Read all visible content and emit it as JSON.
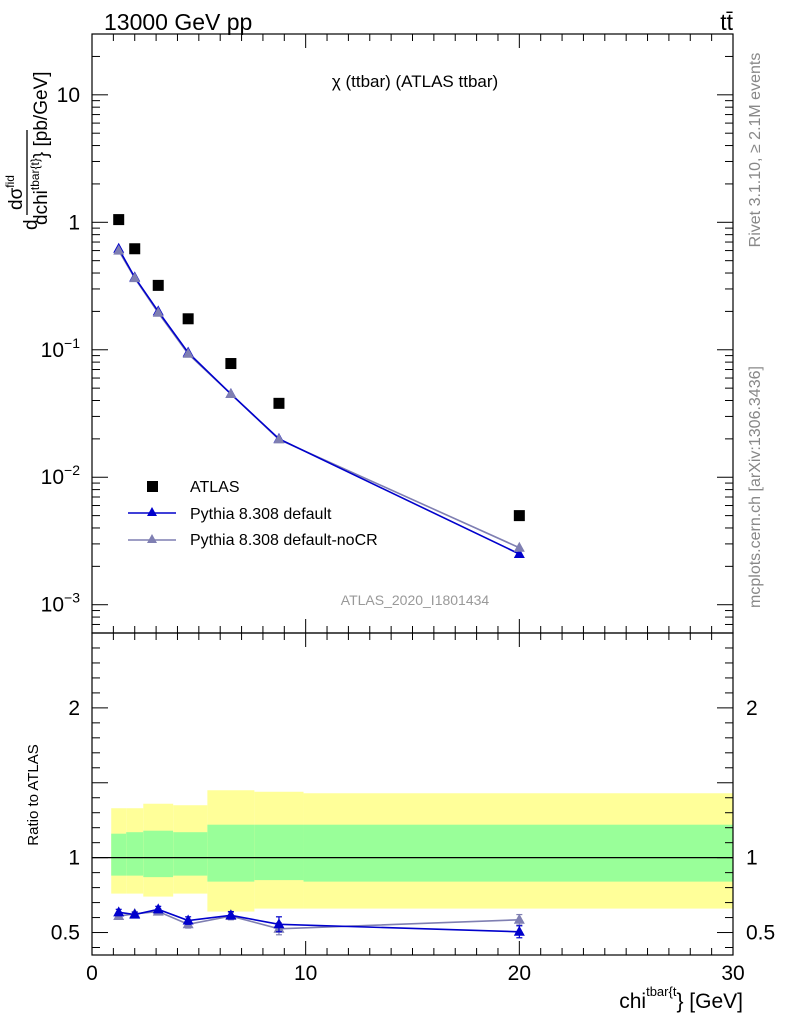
{
  "header": {
    "left": "13000 GeV pp",
    "right": "tt̄"
  },
  "side_labels": {
    "rivet": "Rivet 3.1.10, ≥ 2.1M events",
    "mcplots": "mcplots.cern.ch [arXiv:1306.3436]"
  },
  "colors": {
    "atlas": "#000000",
    "default": "#0000cc",
    "nocr": "#7f7fb2",
    "band_inner": "#99ff99",
    "band_outer": "#ffff99",
    "watermark": "#999999"
  },
  "chart_data": [
    {
      "type": "scatter",
      "title": "χ (ttbar) (ATLAS ttbar)",
      "watermark": "ATLAS_2020_I1801434",
      "ylabel_parts": {
        "d": "d",
        "num": "dσ",
        "num_sup": "fid",
        "den": "dchi",
        "den_sup": "tbar{t}",
        "unit": "} [pb/GeV]"
      },
      "yscale": "log",
      "xlim": [
        0,
        30
      ],
      "ylim": [
        0.0006,
        30
      ],
      "yticks": [
        {
          "value": 0.001,
          "base": "10",
          "exp": "−3"
        },
        {
          "value": 0.01,
          "base": "10",
          "exp": "−2"
        },
        {
          "value": 0.1,
          "base": "10",
          "exp": "−1"
        },
        {
          "value": 1,
          "base": "1",
          "exp": ""
        },
        {
          "value": 10,
          "base": "10",
          "exp": ""
        }
      ],
      "legend_position": "lower-left",
      "series": [
        {
          "name": "ATLAS",
          "style": "marker",
          "x": [
            1.25,
            2.0,
            3.1,
            4.5,
            6.5,
            8.75,
            20.0
          ],
          "y": [
            1.05,
            0.62,
            0.32,
            0.175,
            0.078,
            0.038,
            0.005
          ]
        },
        {
          "name": "Pythia 8.308 default",
          "style": "line",
          "x": [
            1.25,
            2.0,
            3.1,
            4.5,
            6.5,
            8.75,
            20.0
          ],
          "y": [
            0.62,
            0.37,
            0.2,
            0.095,
            0.045,
            0.02,
            0.0025
          ]
        },
        {
          "name": "Pythia 8.308 default-noCR",
          "style": "line",
          "x": [
            1.25,
            2.0,
            3.1,
            4.5,
            6.5,
            8.75,
            20.0
          ],
          "y": [
            0.6,
            0.365,
            0.195,
            0.093,
            0.045,
            0.0198,
            0.0028
          ]
        }
      ]
    },
    {
      "type": "line",
      "ylabel": "Ratio to ATLAS",
      "xlabel_parts": {
        "base": "chi",
        "sup": "tbar{t",
        "tail": "} [GeV]"
      },
      "xlim": [
        0,
        30
      ],
      "ylim": [
        0.35,
        2.5
      ],
      "xticks": [
        0,
        10,
        20,
        30
      ],
      "yticks": [
        0.5,
        1,
        2
      ],
      "bands": {
        "edges": [
          0.9,
          1.6,
          2.4,
          3.8,
          5.4,
          7.6,
          9.9,
          30.0
        ],
        "inner_low": [
          0.88,
          0.88,
          0.87,
          0.88,
          0.84,
          0.85,
          0.84
        ],
        "inner_high": [
          1.16,
          1.17,
          1.18,
          1.17,
          1.22,
          1.22,
          1.22
        ],
        "outer_low": [
          0.76,
          0.76,
          0.74,
          0.76,
          0.64,
          0.66,
          0.66
        ],
        "outer_high": [
          1.33,
          1.33,
          1.36,
          1.35,
          1.45,
          1.44,
          1.43
        ]
      },
      "series": [
        {
          "name": "Pythia 8.308 default",
          "x": [
            1.25,
            2.0,
            3.1,
            4.5,
            6.5,
            8.75,
            20.0
          ],
          "y": [
            0.635,
            0.62,
            0.655,
            0.58,
            0.615,
            0.555,
            0.505
          ],
          "err": [
            0.02,
            0.015,
            0.02,
            0.025,
            0.025,
            0.05,
            0.04
          ]
        },
        {
          "name": "Pythia 8.308 default-noCR",
          "x": [
            1.25,
            2.0,
            3.1,
            4.5,
            6.5,
            8.75,
            20.0
          ],
          "y": [
            0.61,
            0.625,
            0.64,
            0.555,
            0.61,
            0.525,
            0.585
          ],
          "err": [
            0.02,
            0.015,
            0.02,
            0.025,
            0.025,
            0.04,
            0.035
          ]
        }
      ]
    }
  ]
}
